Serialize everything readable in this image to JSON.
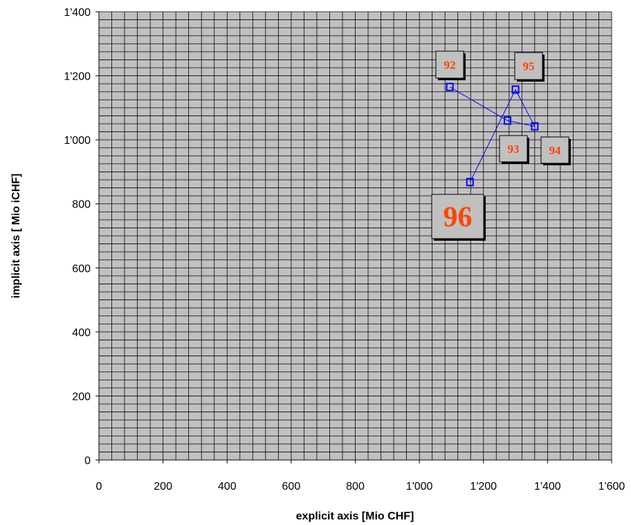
{
  "chart_data": {
    "type": "scatter",
    "title": "",
    "xlabel": "explicit axis [Mio CHF]",
    "ylabel": "implicit axis [ Mio iCHF]",
    "xlim": [
      0,
      1600
    ],
    "ylim": [
      0,
      1400
    ],
    "x_ticks": [
      "0",
      "200",
      "400",
      "600",
      "800",
      "1'000",
      "1'200",
      "1'400",
      "1'600"
    ],
    "y_ticks": [
      "0",
      "200",
      "400",
      "600",
      "800",
      "1'000",
      "1'200",
      "1'400"
    ],
    "grid": true,
    "series": [
      {
        "connected": true,
        "points": [
          {
            "label": "92",
            "x": 1095,
            "y": 1165
          },
          {
            "label": "93",
            "x": 1275,
            "y": 1060
          },
          {
            "label": "94",
            "x": 1360,
            "y": 1042
          },
          {
            "label": "95",
            "x": 1300,
            "y": 1157
          },
          {
            "label": "96",
            "x": 1158,
            "y": 868
          }
        ]
      }
    ],
    "colors": {
      "plot_background": "#c0c0c0",
      "grid": "#000000",
      "marker": "#0000ff",
      "line": "#0000ff",
      "label_text": "#ff4400",
      "label_box": "#c0c0c0"
    }
  }
}
